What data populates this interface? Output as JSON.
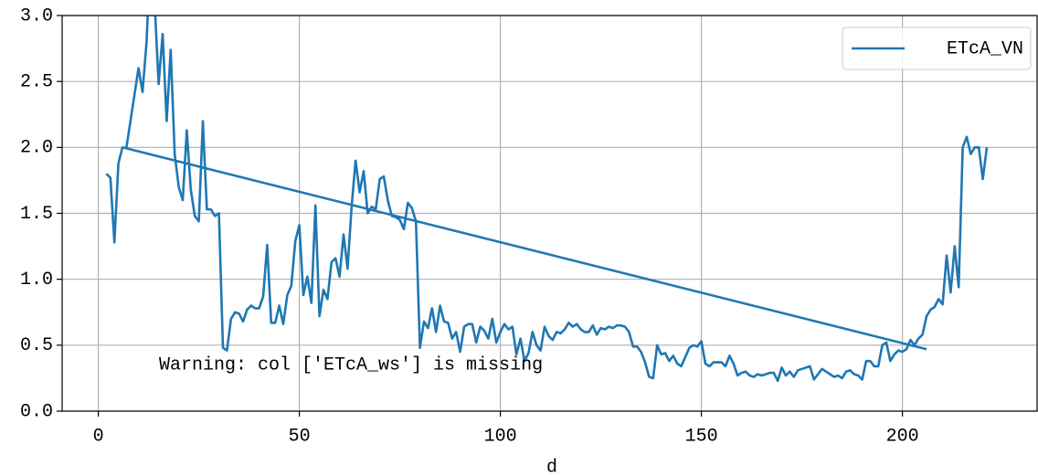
{
  "chart_data": {
    "type": "line",
    "xlabel": "d",
    "annotation": "Warning: col ['ETcA_ws'] is missing",
    "xlim": [
      -9,
      233.5
    ],
    "ylim": [
      0,
      3
    ],
    "xticks": [
      0,
      50,
      100,
      150,
      200
    ],
    "yticks": [
      {
        "value": 0,
        "label": "0.0"
      },
      0.5,
      {
        "value": 1,
        "label": "1.0"
      },
      1.5,
      {
        "value": 2,
        "label": "2.0"
      },
      2.5,
      {
        "value": 3,
        "label": "3.0"
      }
    ],
    "grid": true,
    "legend": "upper right",
    "x": [
      2,
      3,
      4,
      5,
      6,
      206,
      null,
      7,
      8,
      9,
      10,
      11,
      12,
      13,
      14,
      15,
      16,
      17,
      18,
      19,
      20,
      21,
      22,
      23,
      24,
      25,
      26,
      27,
      28,
      29,
      30,
      31,
      32,
      33,
      34,
      35,
      36,
      37,
      38,
      39,
      40,
      41,
      42,
      43,
      44,
      45,
      46,
      47,
      48,
      49,
      50,
      51,
      52,
      53,
      54,
      55,
      56,
      57,
      58,
      59,
      60,
      61,
      62,
      63,
      64,
      65,
      66,
      67,
      68,
      69,
      70,
      71,
      72,
      73,
      74,
      75,
      76,
      77,
      78,
      79,
      80,
      81,
      82,
      83,
      84,
      85,
      86,
      87,
      88,
      89,
      90,
      91,
      92,
      93,
      94,
      95,
      96,
      97,
      98,
      99,
      100,
      101,
      102,
      103,
      104,
      105,
      106,
      107,
      108,
      109,
      110,
      111,
      112,
      113,
      114,
      115,
      116,
      117,
      118,
      119,
      120,
      121,
      122,
      123,
      124,
      125,
      126,
      127,
      128,
      129,
      130,
      131,
      132,
      133,
      134,
      135,
      136,
      137,
      138,
      139,
      140,
      141,
      142,
      143,
      144,
      145,
      146,
      147,
      148,
      149,
      150,
      151,
      152,
      153,
      154,
      155,
      156,
      157,
      158,
      159,
      160,
      161,
      162,
      163,
      164,
      165,
      166,
      167,
      168,
      169,
      170,
      171,
      172,
      173,
      174,
      175,
      176,
      177,
      178,
      179,
      180,
      181,
      182,
      183,
      184,
      185,
      186,
      187,
      188,
      189,
      190,
      191,
      192,
      193,
      194,
      195,
      196,
      197,
      198,
      199,
      200,
      201,
      202,
      203,
      204,
      205,
      206,
      207,
      208,
      209,
      210,
      211,
      212,
      213,
      214,
      215,
      216,
      217,
      218,
      219,
      220,
      221
    ],
    "series": [
      {
        "name": "ETcA_VN",
        "color": "#1f77b4",
        "values": [
          1.8,
          1.77,
          1.28,
          1.88,
          2.0,
          0.47,
          null,
          2.0,
          2.2,
          2.4,
          2.6,
          2.42,
          2.8,
          3.5,
          3.1,
          2.48,
          2.86,
          2.2,
          2.74,
          1.95,
          1.7,
          1.6,
          2.13,
          1.68,
          1.48,
          1.44,
          2.2,
          1.53,
          1.53,
          1.48,
          1.5,
          0.48,
          0.46,
          0.7,
          0.75,
          0.74,
          0.68,
          0.77,
          0.8,
          0.78,
          0.78,
          0.87,
          1.26,
          0.67,
          0.67,
          0.8,
          0.66,
          0.88,
          0.95,
          1.29,
          1.41,
          0.88,
          1.02,
          0.82,
          1.56,
          0.72,
          0.92,
          0.85,
          1.13,
          1.16,
          1.02,
          1.34,
          1.08,
          1.55,
          1.9,
          1.66,
          1.82,
          1.5,
          1.55,
          1.53,
          1.76,
          1.78,
          1.6,
          1.48,
          1.47,
          1.45,
          1.38,
          1.58,
          1.54,
          1.44,
          0.48,
          0.68,
          0.63,
          0.78,
          0.6,
          0.8,
          0.68,
          0.67,
          0.55,
          0.6,
          0.45,
          0.64,
          0.66,
          0.66,
          0.52,
          0.64,
          0.61,
          0.55,
          0.7,
          0.52,
          0.6,
          0.66,
          0.62,
          0.64,
          0.43,
          0.55,
          0.38,
          0.44,
          0.6,
          0.5,
          0.46,
          0.64,
          0.57,
          0.54,
          0.6,
          0.59,
          0.62,
          0.67,
          0.64,
          0.66,
          0.62,
          0.6,
          0.6,
          0.65,
          0.58,
          0.63,
          0.62,
          0.64,
          0.63,
          0.65,
          0.65,
          0.64,
          0.6,
          0.49,
          0.49,
          0.45,
          0.37,
          0.26,
          0.25,
          0.5,
          0.43,
          0.44,
          0.38,
          0.42,
          0.36,
          0.34,
          0.41,
          0.48,
          0.5,
          0.49,
          0.53,
          0.36,
          0.34,
          0.37,
          0.37,
          0.37,
          0.34,
          0.42,
          0.36,
          0.27,
          0.29,
          0.3,
          0.27,
          0.26,
          0.28,
          0.27,
          0.28,
          0.29,
          0.29,
          0.23,
          0.33,
          0.27,
          0.3,
          0.26,
          0.31,
          0.32,
          0.33,
          0.34,
          0.24,
          0.28,
          0.32,
          0.3,
          0.28,
          0.26,
          0.27,
          0.25,
          0.3,
          0.31,
          0.28,
          0.27,
          0.24,
          0.38,
          0.38,
          0.34,
          0.34,
          0.5,
          0.52,
          0.38,
          0.43,
          0.46,
          0.45,
          0.47,
          0.54,
          0.5,
          0.55,
          0.58,
          0.72,
          0.77,
          0.79,
          0.85,
          0.81,
          1.18,
          0.9,
          1.25,
          0.94,
          2.0,
          2.08,
          1.95,
          2.0,
          2.0,
          1.76,
          2.0
        ]
      }
    ]
  }
}
